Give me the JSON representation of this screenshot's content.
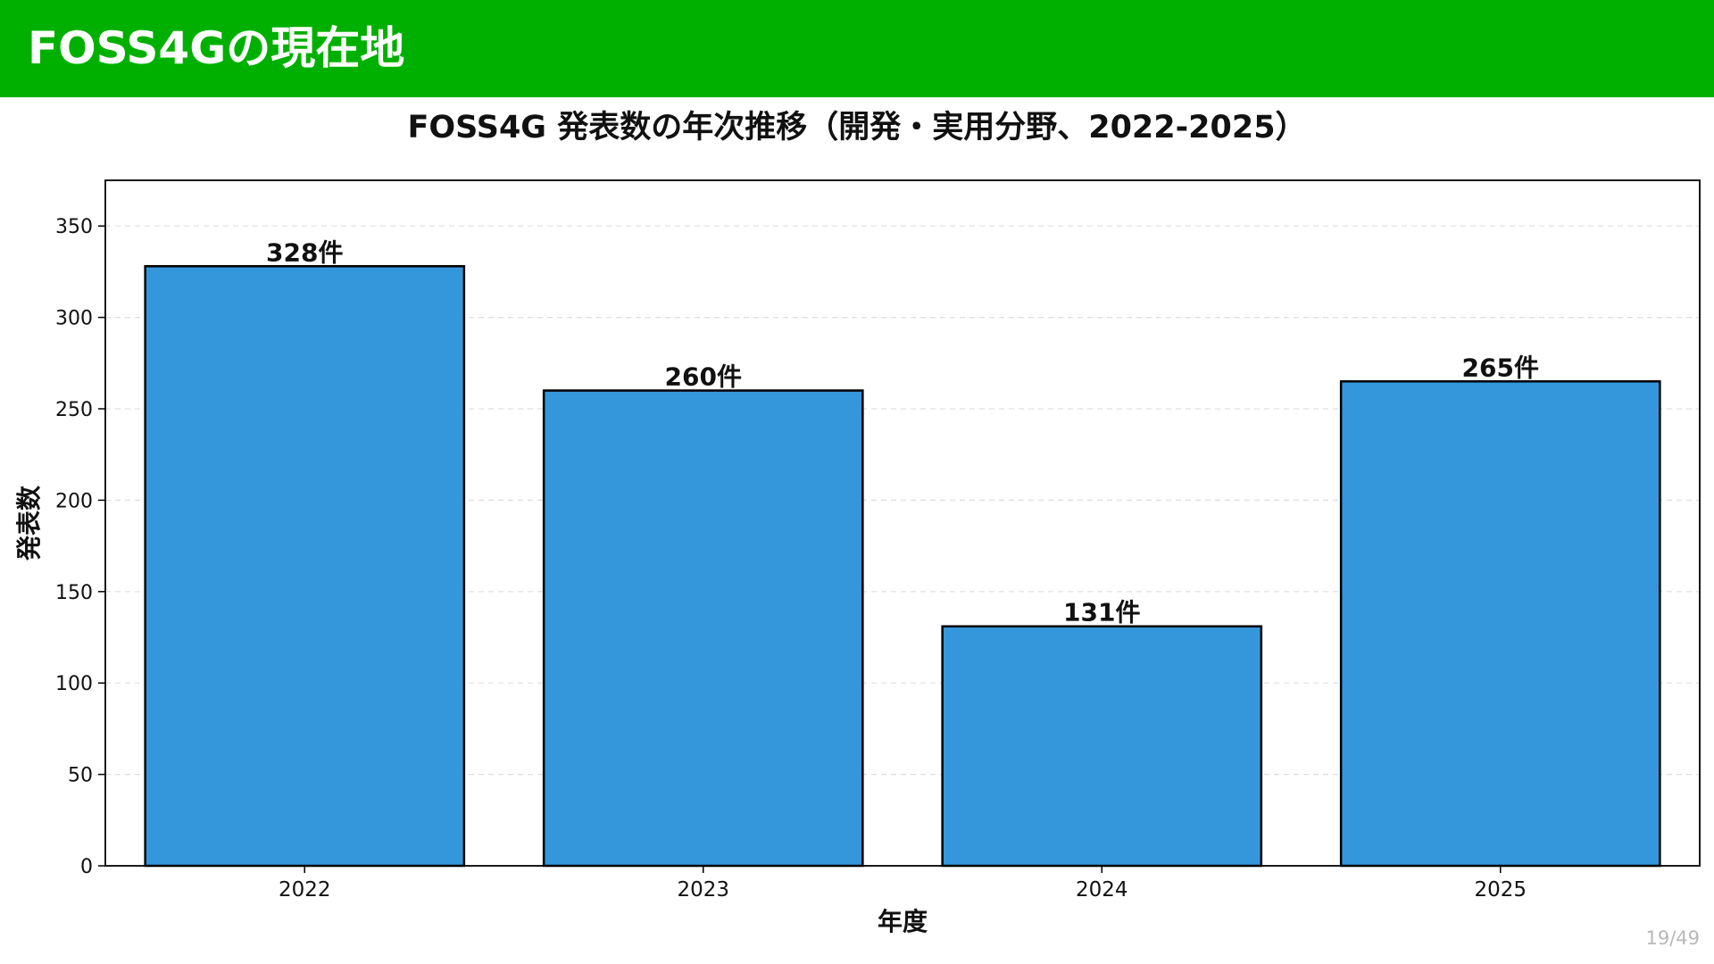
{
  "slide": {
    "title": "FOSS4Gの現在地",
    "page_number": "19/49",
    "header_color": "#00b000"
  },
  "chart_data": {
    "type": "bar",
    "title": "FOSS4G 発表数の年次推移（開発・実用分野、2022-2025）",
    "xlabel": "年度",
    "ylabel": "発表数",
    "categories": [
      "2022",
      "2023",
      "2024",
      "2025"
    ],
    "values": [
      328,
      260,
      131,
      265
    ],
    "data_labels": [
      "328件",
      "260件",
      "131件",
      "265件"
    ],
    "ylim": [
      0,
      375
    ],
    "yticks": [
      0,
      50,
      100,
      150,
      200,
      250,
      300,
      350
    ],
    "grid": "horizontal dashed",
    "bar_color": "#3597db",
    "bar_edge_color": "#000000"
  }
}
